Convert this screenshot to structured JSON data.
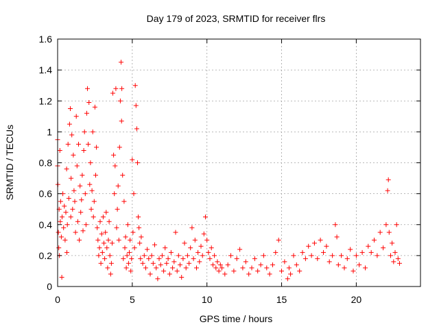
{
  "chart_data": {
    "type": "scatter",
    "title": "Day 179 of 2023, SRMTID for receiver flrs",
    "xlabel": "GPS time / hours",
    "ylabel": "SRMTID / TECUs",
    "xlim": [
      0,
      24.3
    ],
    "ylim": [
      0,
      1.6
    ],
    "xticks": [
      0,
      5,
      10,
      15,
      20
    ],
    "xtick_labels": [
      "0",
      "5",
      "10",
      "15",
      "20"
    ],
    "yticks": [
      0,
      0.2,
      0.4,
      0.6,
      0.8,
      1,
      1.2,
      1.4,
      1.6
    ],
    "ytick_labels": [
      "0",
      "0.2",
      "0.4",
      "0.6",
      "0.8",
      "1",
      "1.2",
      "1.4",
      "1.6"
    ],
    "grid": true,
    "marker": "+",
    "color": "#ff0000",
    "series": [
      {
        "name": "SRMTID",
        "points": [
          [
            0.0,
            0.95
          ],
          [
            0.0,
            0.78
          ],
          [
            0.02,
            0.66
          ],
          [
            0.05,
            0.35
          ],
          [
            0.08,
            0.25
          ],
          [
            0.1,
            0.5
          ],
          [
            0.12,
            0.2
          ],
          [
            0.15,
            0.88
          ],
          [
            0.18,
            0.42
          ],
          [
            0.2,
            0.55
          ],
          [
            0.25,
            0.32
          ],
          [
            0.28,
            0.06
          ],
          [
            0.3,
            0.45
          ],
          [
            0.35,
            0.6
          ],
          [
            0.4,
            0.38
          ],
          [
            0.45,
            0.52
          ],
          [
            0.5,
            0.3
          ],
          [
            0.55,
            0.48
          ],
          [
            0.6,
            0.76
          ],
          [
            0.62,
            0.22
          ],
          [
            0.65,
            0.4
          ],
          [
            0.7,
            0.92
          ],
          [
            0.75,
            0.57
          ],
          [
            0.8,
            1.05
          ],
          [
            0.85,
            1.15
          ],
          [
            0.88,
            0.45
          ],
          [
            0.9,
            0.7
          ],
          [
            0.95,
            0.98
          ],
          [
            1.0,
            0.5
          ],
          [
            1.05,
            0.85
          ],
          [
            1.1,
            0.62
          ],
          [
            1.15,
            0.55
          ],
          [
            1.2,
            0.35
          ],
          [
            1.25,
            1.1
          ],
          [
            1.3,
            0.78
          ],
          [
            1.35,
            0.42
          ],
          [
            1.4,
            0.92
          ],
          [
            1.45,
            0.3
          ],
          [
            1.5,
            0.65
          ],
          [
            1.55,
            0.48
          ],
          [
            1.6,
            0.56
          ],
          [
            1.65,
            0.72
          ],
          [
            1.7,
            0.36
          ],
          [
            1.75,
            0.88
          ],
          [
            1.8,
            1.0
          ],
          [
            1.85,
            0.6
          ],
          [
            1.9,
            0.4
          ],
          [
            1.95,
            1.12
          ],
          [
            2.0,
            1.28
          ],
          [
            2.05,
            0.92
          ],
          [
            2.1,
            1.19
          ],
          [
            2.15,
            0.66
          ],
          [
            2.2,
            0.8
          ],
          [
            2.25,
            0.5
          ],
          [
            2.3,
            0.62
          ],
          [
            2.35,
            1.0
          ],
          [
            2.4,
            0.45
          ],
          [
            2.45,
            0.55
          ],
          [
            2.5,
            1.16
          ],
          [
            2.55,
            0.72
          ],
          [
            2.6,
            0.9
          ],
          [
            2.65,
            0.38
          ],
          [
            2.7,
            0.3
          ],
          [
            2.75,
            0.2
          ],
          [
            2.8,
            0.25
          ],
          [
            2.85,
            0.42
          ],
          [
            2.9,
            0.15
          ],
          [
            2.95,
            0.34
          ],
          [
            3.0,
            0.22
          ],
          [
            3.05,
            0.45
          ],
          [
            3.1,
            0.28
          ],
          [
            3.15,
            0.18
          ],
          [
            3.2,
            0.35
          ],
          [
            3.25,
            0.48
          ],
          [
            3.3,
            0.25
          ],
          [
            3.35,
            0.12
          ],
          [
            3.4,
            0.3
          ],
          [
            3.45,
            0.42
          ],
          [
            3.5,
            0.2
          ],
          [
            3.55,
            0.08
          ],
          [
            3.6,
            0.15
          ],
          [
            3.65,
            0.28
          ],
          [
            3.7,
            1.25
          ],
          [
            3.75,
            0.85
          ],
          [
            3.8,
            0.6
          ],
          [
            3.85,
            0.78
          ],
          [
            3.9,
            1.28
          ],
          [
            3.95,
            0.38
          ],
          [
            4.0,
            0.5
          ],
          [
            4.05,
            0.65
          ],
          [
            4.1,
            0.3
          ],
          [
            4.15,
            0.9
          ],
          [
            4.2,
            1.2
          ],
          [
            4.25,
            1.45
          ],
          [
            4.28,
            1.07
          ],
          [
            4.3,
            1.28
          ],
          [
            4.35,
            0.72
          ],
          [
            4.4,
            0.18
          ],
          [
            4.45,
            0.55
          ],
          [
            4.5,
            0.25
          ],
          [
            4.55,
            0.32
          ],
          [
            4.6,
            0.12
          ],
          [
            4.65,
            0.2
          ],
          [
            4.7,
            0.4
          ],
          [
            4.75,
            0.15
          ],
          [
            4.8,
            0.22
          ],
          [
            4.85,
            0.3
          ],
          [
            4.9,
            0.1
          ],
          [
            4.95,
            0.18
          ],
          [
            5.0,
            0.82
          ],
          [
            5.05,
            0.35
          ],
          [
            5.1,
            0.6
          ],
          [
            5.15,
            0.25
          ],
          [
            5.2,
            1.3
          ],
          [
            5.25,
            1.17
          ],
          [
            5.3,
            1.02
          ],
          [
            5.35,
            0.8
          ],
          [
            5.4,
            0.45
          ],
          [
            5.45,
            0.38
          ],
          [
            5.5,
            0.28
          ],
          [
            5.55,
            0.18
          ],
          [
            5.6,
            0.32
          ],
          [
            5.7,
            0.15
          ],
          [
            5.8,
            0.2
          ],
          [
            5.9,
            0.12
          ],
          [
            6.0,
            0.24
          ],
          [
            6.1,
            0.18
          ],
          [
            6.2,
            0.08
          ],
          [
            6.3,
            0.2
          ],
          [
            6.4,
            0.15
          ],
          [
            6.5,
            0.27
          ],
          [
            6.6,
            0.12
          ],
          [
            6.7,
            0.05
          ],
          [
            6.8,
            0.18
          ],
          [
            6.9,
            0.14
          ],
          [
            7.0,
            0.2
          ],
          [
            7.1,
            0.1
          ],
          [
            7.2,
            0.25
          ],
          [
            7.3,
            0.15
          ],
          [
            7.4,
            0.18
          ],
          [
            7.5,
            0.08
          ],
          [
            7.6,
            0.22
          ],
          [
            7.7,
            0.12
          ],
          [
            7.8,
            0.16
          ],
          [
            7.9,
            0.35
          ],
          [
            8.0,
            0.1
          ],
          [
            8.1,
            0.2
          ],
          [
            8.2,
            0.14
          ],
          [
            8.3,
            0.06
          ],
          [
            8.4,
            0.18
          ],
          [
            8.5,
            0.28
          ],
          [
            8.6,
            0.12
          ],
          [
            8.7,
            0.2
          ],
          [
            8.8,
            0.15
          ],
          [
            8.9,
            0.25
          ],
          [
            9.0,
            0.38
          ],
          [
            9.1,
            0.18
          ],
          [
            9.2,
            0.3
          ],
          [
            9.3,
            0.12
          ],
          [
            9.4,
            0.22
          ],
          [
            9.5,
            0.16
          ],
          [
            9.6,
            0.26
          ],
          [
            9.7,
            0.2
          ],
          [
            9.8,
            0.34
          ],
          [
            9.9,
            0.45
          ],
          [
            10.0,
            0.3
          ],
          [
            10.1,
            0.22
          ],
          [
            10.2,
            0.18
          ],
          [
            10.3,
            0.25
          ],
          [
            10.4,
            0.14
          ],
          [
            10.5,
            0.2
          ],
          [
            10.6,
            0.12
          ],
          [
            10.7,
            0.16
          ],
          [
            10.8,
            0.1
          ],
          [
            10.9,
            0.14
          ],
          [
            11.0,
            0.12
          ],
          [
            11.2,
            0.08
          ],
          [
            11.4,
            0.14
          ],
          [
            11.6,
            0.2
          ],
          [
            11.8,
            0.1
          ],
          [
            12.0,
            0.18
          ],
          [
            12.2,
            0.24
          ],
          [
            12.4,
            0.12
          ],
          [
            12.6,
            0.16
          ],
          [
            12.8,
            0.08
          ],
          [
            13.0,
            0.12
          ],
          [
            13.2,
            0.18
          ],
          [
            13.4,
            0.1
          ],
          [
            13.6,
            0.14
          ],
          [
            13.8,
            0.2
          ],
          [
            14.0,
            0.12
          ],
          [
            14.2,
            0.08
          ],
          [
            14.4,
            0.14
          ],
          [
            14.6,
            0.22
          ],
          [
            14.8,
            0.3
          ],
          [
            15.0,
            0.1
          ],
          [
            15.2,
            0.16
          ],
          [
            15.4,
            0.05
          ],
          [
            15.5,
            0.12
          ],
          [
            15.6,
            0.08
          ],
          [
            15.8,
            0.2
          ],
          [
            16.0,
            0.14
          ],
          [
            16.2,
            0.1
          ],
          [
            16.4,
            0.22
          ],
          [
            16.6,
            0.18
          ],
          [
            16.8,
            0.26
          ],
          [
            17.0,
            0.2
          ],
          [
            17.2,
            0.28
          ],
          [
            17.4,
            0.18
          ],
          [
            17.6,
            0.3
          ],
          [
            17.8,
            0.22
          ],
          [
            18.0,
            0.26
          ],
          [
            18.2,
            0.16
          ],
          [
            18.4,
            0.2
          ],
          [
            18.6,
            0.4
          ],
          [
            18.7,
            0.32
          ],
          [
            18.8,
            0.14
          ],
          [
            19.0,
            0.2
          ],
          [
            19.2,
            0.12
          ],
          [
            19.4,
            0.18
          ],
          [
            19.6,
            0.24
          ],
          [
            19.8,
            0.1
          ],
          [
            20.0,
            0.2
          ],
          [
            20.2,
            0.14
          ],
          [
            20.4,
            0.22
          ],
          [
            20.6,
            0.12
          ],
          [
            20.8,
            0.26
          ],
          [
            21.0,
            0.22
          ],
          [
            21.2,
            0.3
          ],
          [
            21.4,
            0.2
          ],
          [
            21.6,
            0.35
          ],
          [
            21.8,
            0.25
          ],
          [
            22.0,
            0.4
          ],
          [
            22.1,
            0.62
          ],
          [
            22.15,
            0.69
          ],
          [
            22.2,
            0.35
          ],
          [
            22.3,
            0.2
          ],
          [
            22.4,
            0.28
          ],
          [
            22.5,
            0.16
          ],
          [
            22.6,
            0.22
          ],
          [
            22.7,
            0.4
          ],
          [
            22.8,
            0.18
          ],
          [
            22.9,
            0.15
          ]
        ]
      }
    ]
  }
}
